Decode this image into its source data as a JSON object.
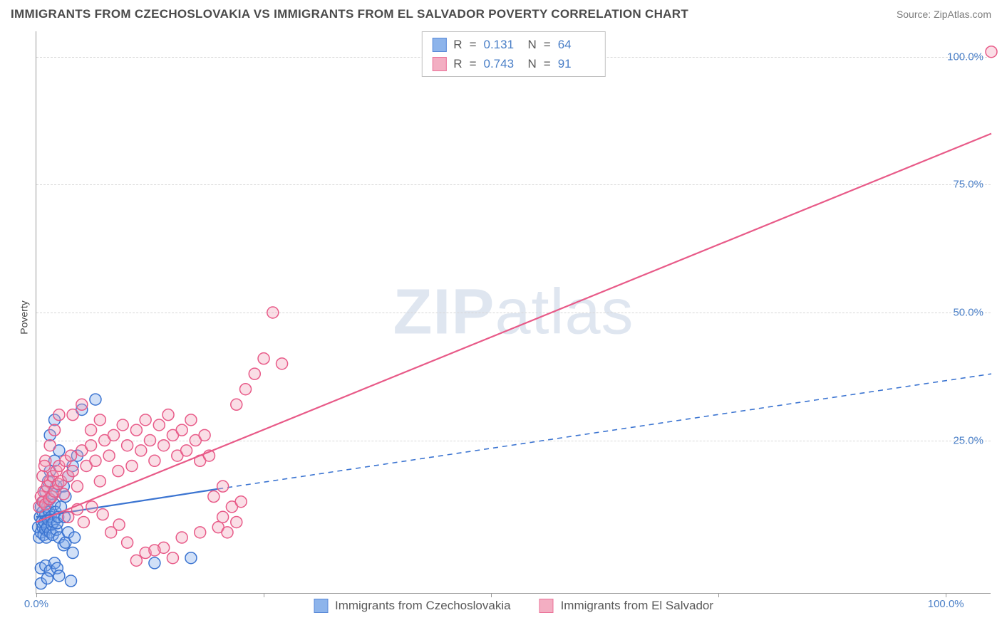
{
  "title": "IMMIGRANTS FROM CZECHOSLOVAKIA VS IMMIGRANTS FROM EL SALVADOR POVERTY CORRELATION CHART",
  "source_prefix": "Source: ",
  "source_name": "ZipAtlas.com",
  "ylabel": "Poverty",
  "watermark_bold": "ZIP",
  "watermark_rest": "atlas",
  "chart": {
    "type": "scatter",
    "xlim": [
      0,
      105
    ],
    "ylim": [
      -5,
      105
    ],
    "xticks": [
      0,
      25,
      50,
      75,
      100
    ],
    "xtick_labels": [
      "0.0%",
      "",
      "",
      "",
      "100.0%"
    ],
    "yticks": [
      25,
      50,
      75,
      100
    ],
    "ytick_labels": [
      "25.0%",
      "50.0%",
      "75.0%",
      "100.0%"
    ],
    "grid_color": "#d8d8d8",
    "axis_color": "#9a9a9a",
    "background_color": "#ffffff",
    "marker_radius": 8,
    "marker_stroke_width": 1.5,
    "marker_fill_opacity": 0.35,
    "regression_stroke_width": 2.2
  },
  "series": [
    {
      "id": "czech",
      "label": "Immigrants from Czechoslovakia",
      "color_stroke": "#3b74d1",
      "color_fill": "#7aa7e8",
      "R": "0.131",
      "N": "64",
      "regression": {
        "x1": 0,
        "y1": 10,
        "x2": 20,
        "y2": 15.5,
        "dash_to_x": 105,
        "dash_to_y": 38
      },
      "points": [
        [
          0.2,
          8
        ],
        [
          0.3,
          6
        ],
        [
          0.4,
          10
        ],
        [
          0.5,
          12
        ],
        [
          0.5,
          7
        ],
        [
          0.6,
          9
        ],
        [
          0.7,
          8
        ],
        [
          0.7,
          11
        ],
        [
          0.8,
          6.5
        ],
        [
          0.8,
          13
        ],
        [
          0.9,
          9
        ],
        [
          1.0,
          10.5
        ],
        [
          1.0,
          7.5
        ],
        [
          1.1,
          6
        ],
        [
          1.2,
          12
        ],
        [
          1.2,
          8
        ],
        [
          1.3,
          9.5
        ],
        [
          1.4,
          11
        ],
        [
          1.5,
          7
        ],
        [
          1.5,
          13.5
        ],
        [
          1.6,
          10
        ],
        [
          1.7,
          8.5
        ],
        [
          1.8,
          6.5
        ],
        [
          1.9,
          9
        ],
        [
          2.0,
          12.5
        ],
        [
          2.1,
          11
        ],
        [
          2.2,
          7.5
        ],
        [
          2.3,
          8.8
        ],
        [
          2.4,
          10
        ],
        [
          2.5,
          6
        ],
        [
          0.5,
          0
        ],
        [
          1.0,
          0.5
        ],
        [
          1.5,
          -0.5
        ],
        [
          2.0,
          1
        ],
        [
          2.3,
          0
        ],
        [
          3.0,
          4.5
        ],
        [
          3.2,
          5
        ],
        [
          3.5,
          7
        ],
        [
          4.0,
          3
        ],
        [
          4.2,
          6
        ],
        [
          1.0,
          15
        ],
        [
          1.3,
          17
        ],
        [
          1.5,
          19
        ],
        [
          2.0,
          21
        ],
        [
          2.5,
          23
        ],
        [
          3.0,
          16
        ],
        [
          3.2,
          14
        ],
        [
          3.5,
          18
        ],
        [
          4.0,
          20
        ],
        [
          4.5,
          22
        ],
        [
          1.5,
          26
        ],
        [
          2.0,
          29
        ],
        [
          5.0,
          31
        ],
        [
          6.5,
          33
        ],
        [
          0.5,
          -3
        ],
        [
          1.2,
          -2
        ],
        [
          2.5,
          -1.5
        ],
        [
          3.8,
          -2.5
        ],
        [
          17,
          2
        ],
        [
          13,
          1
        ],
        [
          1.8,
          14.5
        ],
        [
          2.2,
          16
        ],
        [
          2.7,
          12
        ],
        [
          3.1,
          10
        ]
      ]
    },
    {
      "id": "elsalvador",
      "label": "Immigrants from El Salvador",
      "color_stroke": "#e85a88",
      "color_fill": "#f2a0b8",
      "R": "0.743",
      "N": "91",
      "regression": {
        "x1": 0,
        "y1": 9,
        "x2": 105,
        "y2": 85,
        "dash_to_x": null,
        "dash_to_y": null
      },
      "points": [
        [
          0.3,
          12
        ],
        [
          0.5,
          14
        ],
        [
          0.7,
          13
        ],
        [
          0.8,
          15
        ],
        [
          1.0,
          12.5
        ],
        [
          1.2,
          16
        ],
        [
          1.4,
          13.5
        ],
        [
          1.5,
          17
        ],
        [
          1.7,
          14
        ],
        [
          1.8,
          18
        ],
        [
          2.0,
          15
        ],
        [
          2.2,
          19
        ],
        [
          2.4,
          16.5
        ],
        [
          2.5,
          20
        ],
        [
          2.7,
          17
        ],
        [
          3.0,
          14.5
        ],
        [
          3.2,
          21
        ],
        [
          3.5,
          18
        ],
        [
          3.8,
          22
        ],
        [
          4.0,
          19
        ],
        [
          4.5,
          16
        ],
        [
          5.0,
          23
        ],
        [
          5.5,
          20
        ],
        [
          6.0,
          24
        ],
        [
          6.5,
          21
        ],
        [
          7.0,
          17
        ],
        [
          7.5,
          25
        ],
        [
          8.0,
          22
        ],
        [
          8.5,
          26
        ],
        [
          9.0,
          19
        ],
        [
          9.5,
          28
        ],
        [
          10.0,
          24
        ],
        [
          10.5,
          20
        ],
        [
          11.0,
          27
        ],
        [
          11.5,
          23
        ],
        [
          12.0,
          29
        ],
        [
          12.5,
          25
        ],
        [
          13.0,
          21
        ],
        [
          13.5,
          28
        ],
        [
          14.0,
          24
        ],
        [
          14.5,
          30
        ],
        [
          15.0,
          26
        ],
        [
          15.5,
          22
        ],
        [
          16.0,
          27
        ],
        [
          16.5,
          23
        ],
        [
          17.0,
          29
        ],
        [
          17.5,
          25
        ],
        [
          18.0,
          21
        ],
        [
          18.5,
          26
        ],
        [
          19.0,
          22
        ],
        [
          20,
          8
        ],
        [
          20.5,
          10
        ],
        [
          21,
          7
        ],
        [
          22,
          9
        ],
        [
          19.5,
          14
        ],
        [
          20.5,
          16
        ],
        [
          21.5,
          12
        ],
        [
          22.5,
          13
        ],
        [
          10,
          5
        ],
        [
          12,
          3
        ],
        [
          14,
          4
        ],
        [
          16,
          6
        ],
        [
          18,
          7
        ],
        [
          15,
          2
        ],
        [
          11,
          1.5
        ],
        [
          13,
          3.5
        ],
        [
          22,
          32
        ],
        [
          23,
          35
        ],
        [
          24,
          38
        ],
        [
          25,
          41
        ],
        [
          26,
          50
        ],
        [
          27,
          40
        ],
        [
          105,
          101
        ],
        [
          1.0,
          21
        ],
        [
          1.5,
          24
        ],
        [
          2.0,
          27
        ],
        [
          2.5,
          30
        ],
        [
          0.7,
          18
        ],
        [
          0.9,
          20
        ],
        [
          4,
          30
        ],
        [
          5,
          32
        ],
        [
          6,
          27
        ],
        [
          7,
          29
        ],
        [
          3.5,
          10
        ],
        [
          4.5,
          11.5
        ],
        [
          5.2,
          9
        ],
        [
          6.1,
          12
        ],
        [
          7.3,
          10.5
        ],
        [
          8.2,
          7
        ],
        [
          9.1,
          8.5
        ]
      ]
    }
  ],
  "stats_box": {
    "R_label": "R",
    "N_label": "N",
    "eq": "="
  },
  "colors": {
    "tick_text": "#4a7fc7",
    "title_text": "#4a4a4a",
    "source_text": "#7a7a7a",
    "legend_text": "#5a5a5a"
  }
}
